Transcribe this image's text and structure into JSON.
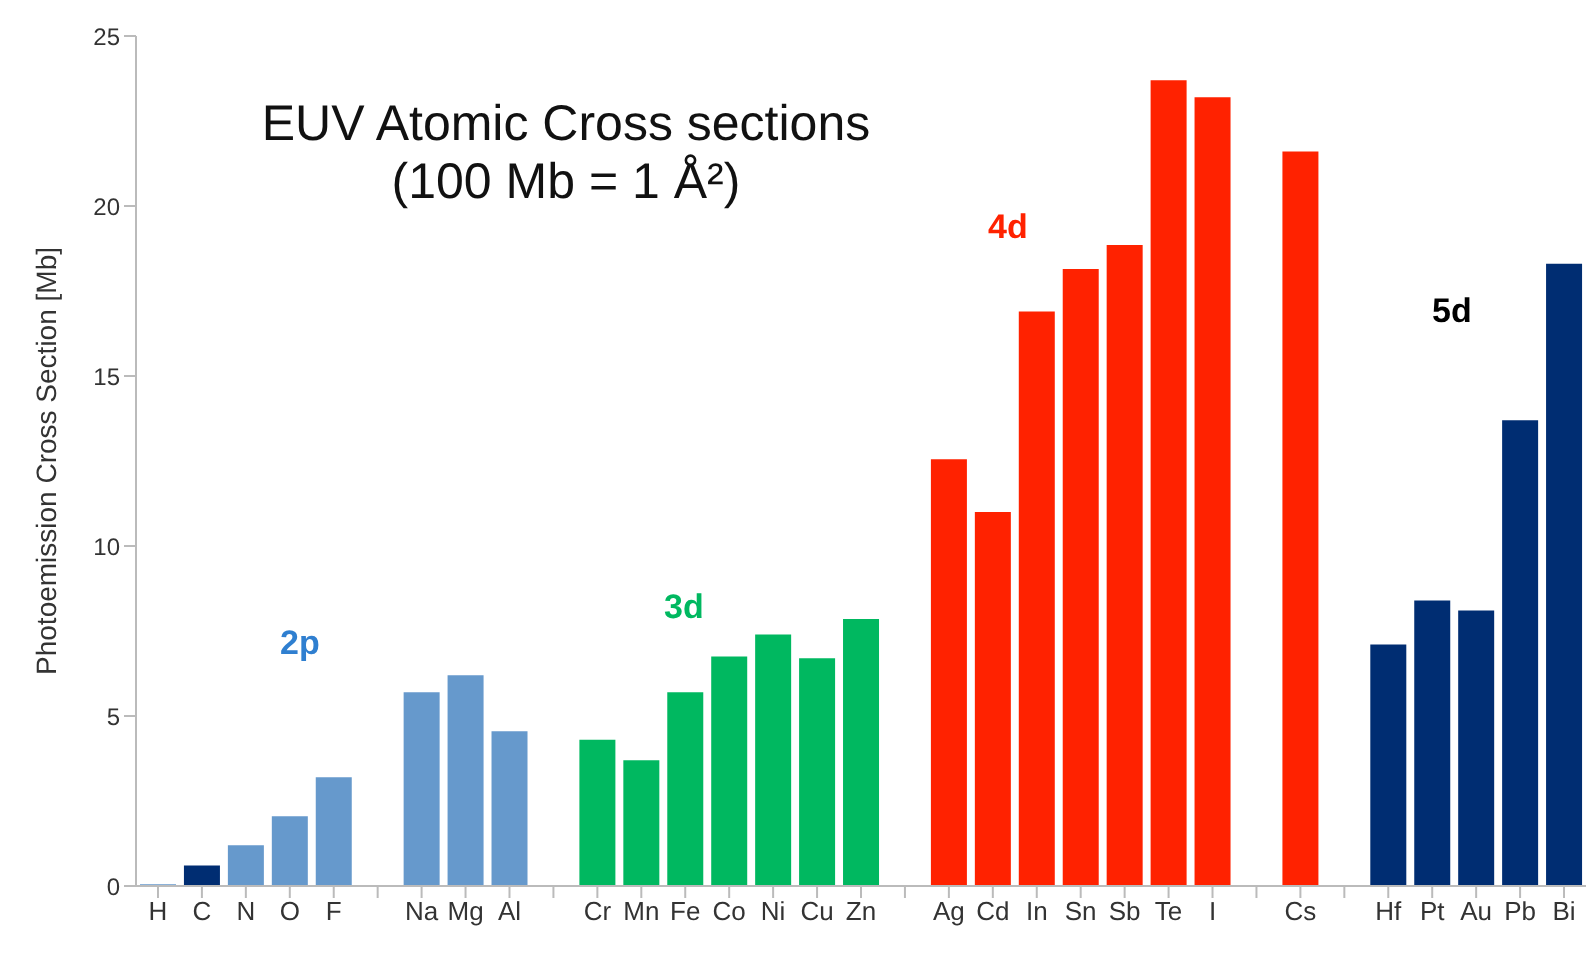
{
  "chart_data": {
    "type": "bar",
    "title": "EUV Atomic Cross sections",
    "subtitle": "(100 Mb = 1 Å²)",
    "ylabel": "Photoemission Cross  Section [Mb]",
    "categories": [
      "H",
      "C",
      "N",
      "O",
      "F",
      null,
      "Na",
      "Mg",
      "Al",
      null,
      "Cr",
      "Mn",
      "Fe",
      "Co",
      "Ni",
      "Cu",
      "Zn",
      null,
      "Ag",
      "Cd",
      "In",
      "Sn",
      "Sb",
      "Te",
      "I",
      null,
      "Cs",
      null,
      "Hf",
      "Pt",
      "Au",
      "Pb",
      "Bi"
    ],
    "values": [
      0.05,
      0.6,
      1.2,
      2.05,
      3.2,
      null,
      5.7,
      6.2,
      4.55,
      null,
      4.3,
      3.7,
      5.7,
      6.75,
      7.4,
      6.7,
      7.85,
      null,
      12.55,
      11.0,
      16.9,
      18.15,
      18.85,
      23.7,
      23.2,
      null,
      21.6,
      null,
      7.1,
      8.4,
      8.1,
      13.7,
      18.3
    ],
    "colors": [
      "#6699cc",
      "#002d72",
      "#6699cc",
      "#6699cc",
      "#6699cc",
      "#ffffff",
      "#6699cc",
      "#6699cc",
      "#6699cc",
      "#ffffff",
      "#00b860",
      "#00b860",
      "#00b860",
      "#00b860",
      "#00b860",
      "#00b860",
      "#00b860",
      "#ffffff",
      "#ff2200",
      "#ff2200",
      "#ff2200",
      "#ff2200",
      "#ff2200",
      "#ff2200",
      "#ff2200",
      "#ffffff",
      "#ff2200",
      "#ffffff",
      "#002d72",
      "#002d72",
      "#002d72",
      "#002d72",
      "#002d72"
    ],
    "annotations": [
      "2p",
      "3d",
      "4d",
      "5d"
    ],
    "ylim": [
      0,
      25
    ],
    "yticks": [
      0,
      5,
      10,
      15,
      20,
      25
    ]
  }
}
